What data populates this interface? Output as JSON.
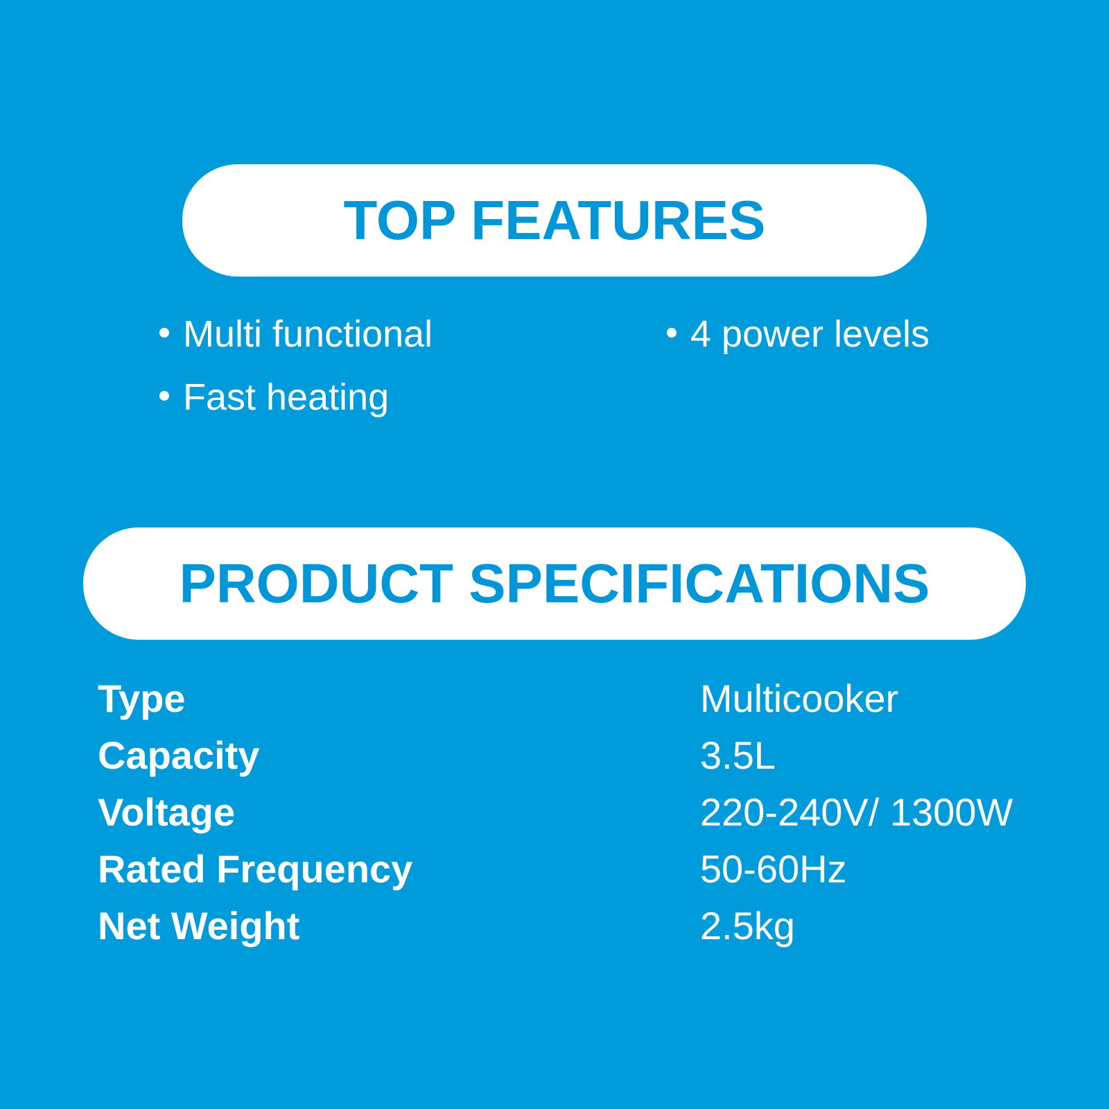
{
  "features": {
    "title": "TOP FEATURES",
    "items": [
      "Multi functional",
      "Fast heating",
      "4 power levels"
    ]
  },
  "specifications": {
    "title": "PRODUCT SPECIFICATIONS",
    "rows": [
      {
        "label": "Type",
        "value": "Multicooker"
      },
      {
        "label": "Capacity",
        "value": "3.5L"
      },
      {
        "label": "Voltage",
        "value": "220-240V/ 1300W"
      },
      {
        "label": "Rated Frequency",
        "value": "50-60Hz"
      },
      {
        "label": "Net Weight",
        "value": "2.5kg"
      }
    ]
  },
  "colors": {
    "background": "#009bdb",
    "heading_text": "#0096d8",
    "pill": "#ffffff"
  }
}
